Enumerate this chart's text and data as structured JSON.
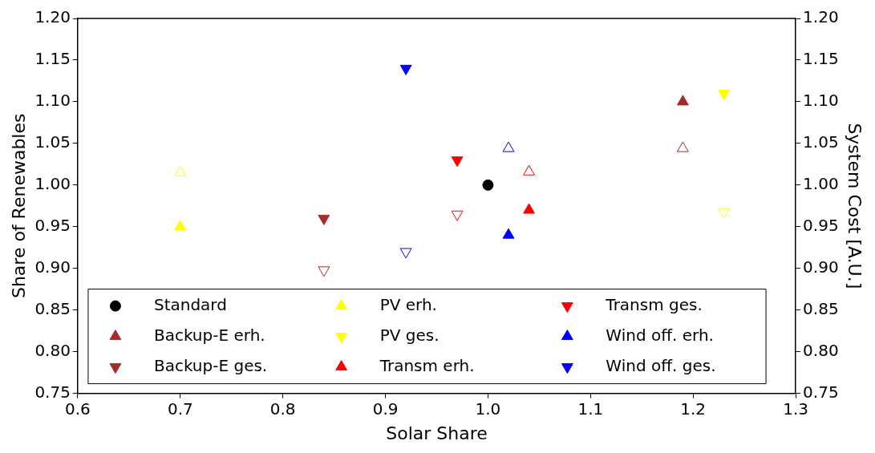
{
  "chart_data": {
    "type": "scatter",
    "xlabel": "Solar Share",
    "ylabel": "Share of Renewables",
    "y2label": "System Cost [A.U.]",
    "xlim": [
      0.6,
      1.3
    ],
    "xticks": [
      {
        "value": 0.6,
        "label": "0.6"
      },
      {
        "value": 0.7,
        "label": "0.7"
      },
      {
        "value": 0.8,
        "label": "0.8"
      },
      {
        "value": 0.9,
        "label": "0.9"
      },
      {
        "value": 1,
        "label": "1.0"
      },
      {
        "value": 1.1,
        "label": "1.1"
      },
      {
        "value": 1.2,
        "label": "1.2"
      },
      {
        "value": 1.3,
        "label": "1.3"
      }
    ],
    "ylim": [
      0.75,
      1.2
    ],
    "yticks": [
      {
        "value": 0.75,
        "label": "0.75"
      },
      {
        "value": 0.8,
        "label": "0.80"
      },
      {
        "value": 0.85,
        "label": "0.85"
      },
      {
        "value": 0.9,
        "label": "0.90"
      },
      {
        "value": 0.95,
        "label": "0.95"
      },
      {
        "value": 1,
        "label": "1.00"
      },
      {
        "value": 1.05,
        "label": "1.05"
      },
      {
        "value": 1.1,
        "label": "1.10"
      },
      {
        "value": 1.15,
        "label": "1.15"
      },
      {
        "value": 1.2,
        "label": "1.20"
      }
    ],
    "y2lim": [
      0.75,
      1.2
    ],
    "y2ticks": [
      {
        "value": 0.75,
        "label": "0.75"
      },
      {
        "value": 0.8,
        "label": "0.80"
      },
      {
        "value": 0.85,
        "label": "0.85"
      },
      {
        "value": 0.9,
        "label": "0.90"
      },
      {
        "value": 0.95,
        "label": "0.95"
      },
      {
        "value": 1,
        "label": "1.00"
      },
      {
        "value": 1.05,
        "label": "1.05"
      },
      {
        "value": 1.1,
        "label": "1.10"
      },
      {
        "value": 1.15,
        "label": "1.15"
      },
      {
        "value": 1.2,
        "label": "1.20"
      }
    ],
    "grid": false,
    "legend": "bottom",
    "series": [
      {
        "name": "Standard",
        "color": "#000000",
        "marker": "circle",
        "x": [
          1.0
        ],
        "values": [
          1.0
        ]
      },
      {
        "name": "Backup-E erh.",
        "color": "#a52a2a",
        "marker": "triangle",
        "x": [
          1.19
        ],
        "values": [
          1.1
        ]
      },
      {
        "name": "Backup-E ges.",
        "color": "#a52a2a",
        "marker": "triangle_down",
        "x": [
          0.84
        ],
        "values": [
          0.96
        ]
      },
      {
        "name": "PV erh.",
        "color": "#ffff00",
        "marker": "triangle",
        "x": [
          0.7
        ],
        "values": [
          0.95
        ]
      },
      {
        "name": "PV ges.",
        "color": "#ffff00",
        "marker": "triangle_down",
        "x": [
          1.23
        ],
        "values": [
          1.11
        ]
      },
      {
        "name": "Transm erh.",
        "color": "#ff0000",
        "marker": "triangle",
        "x": [
          1.04
        ],
        "values": [
          0.97
        ]
      },
      {
        "name": "Transm ges.",
        "color": "#ff0000",
        "marker": "triangle_down",
        "x": [
          0.97
        ],
        "values": [
          1.03
        ]
      },
      {
        "name": "Wind off. erh.",
        "color": "#0000ff",
        "marker": "triangle",
        "x": [
          1.02
        ],
        "values": [
          0.94
        ]
      },
      {
        "name": "Wind off. ges.",
        "color": "#0000ff",
        "marker": "triangle_down",
        "x": [
          0.92
        ],
        "values": [
          1.14
        ]
      },
      {
        "color": "#a52a2a",
        "marker": "triangle",
        "axis": "y2",
        "x": [
          1.19
        ],
        "values": [
          1.044
        ]
      },
      {
        "color": "#a52a2a",
        "marker": "triangle_down",
        "axis": "y2",
        "x": [
          0.84
        ],
        "values": [
          0.898
        ]
      },
      {
        "color": "#ffff00",
        "marker": "triangle",
        "axis": "y2",
        "x": [
          0.7
        ],
        "values": [
          1.015
        ]
      },
      {
        "color": "#ffff00",
        "marker": "triangle_down",
        "axis": "y2",
        "x": [
          1.23
        ],
        "values": [
          0.968
        ]
      },
      {
        "color": "#ff0000",
        "marker": "triangle",
        "axis": "y2",
        "x": [
          1.04
        ],
        "values": [
          1.016
        ]
      },
      {
        "color": "#ff0000",
        "marker": "triangle_down",
        "axis": "y2",
        "x": [
          0.97
        ],
        "values": [
          0.965
        ]
      },
      {
        "color": "#0000ff",
        "marker": "triangle",
        "axis": "y2",
        "x": [
          1.02
        ],
        "values": [
          1.044
        ]
      },
      {
        "color": "#0000ff",
        "marker": "triangle_down",
        "axis": "y2",
        "x": [
          0.92
        ],
        "values": [
          0.92
        ]
      }
    ]
  }
}
